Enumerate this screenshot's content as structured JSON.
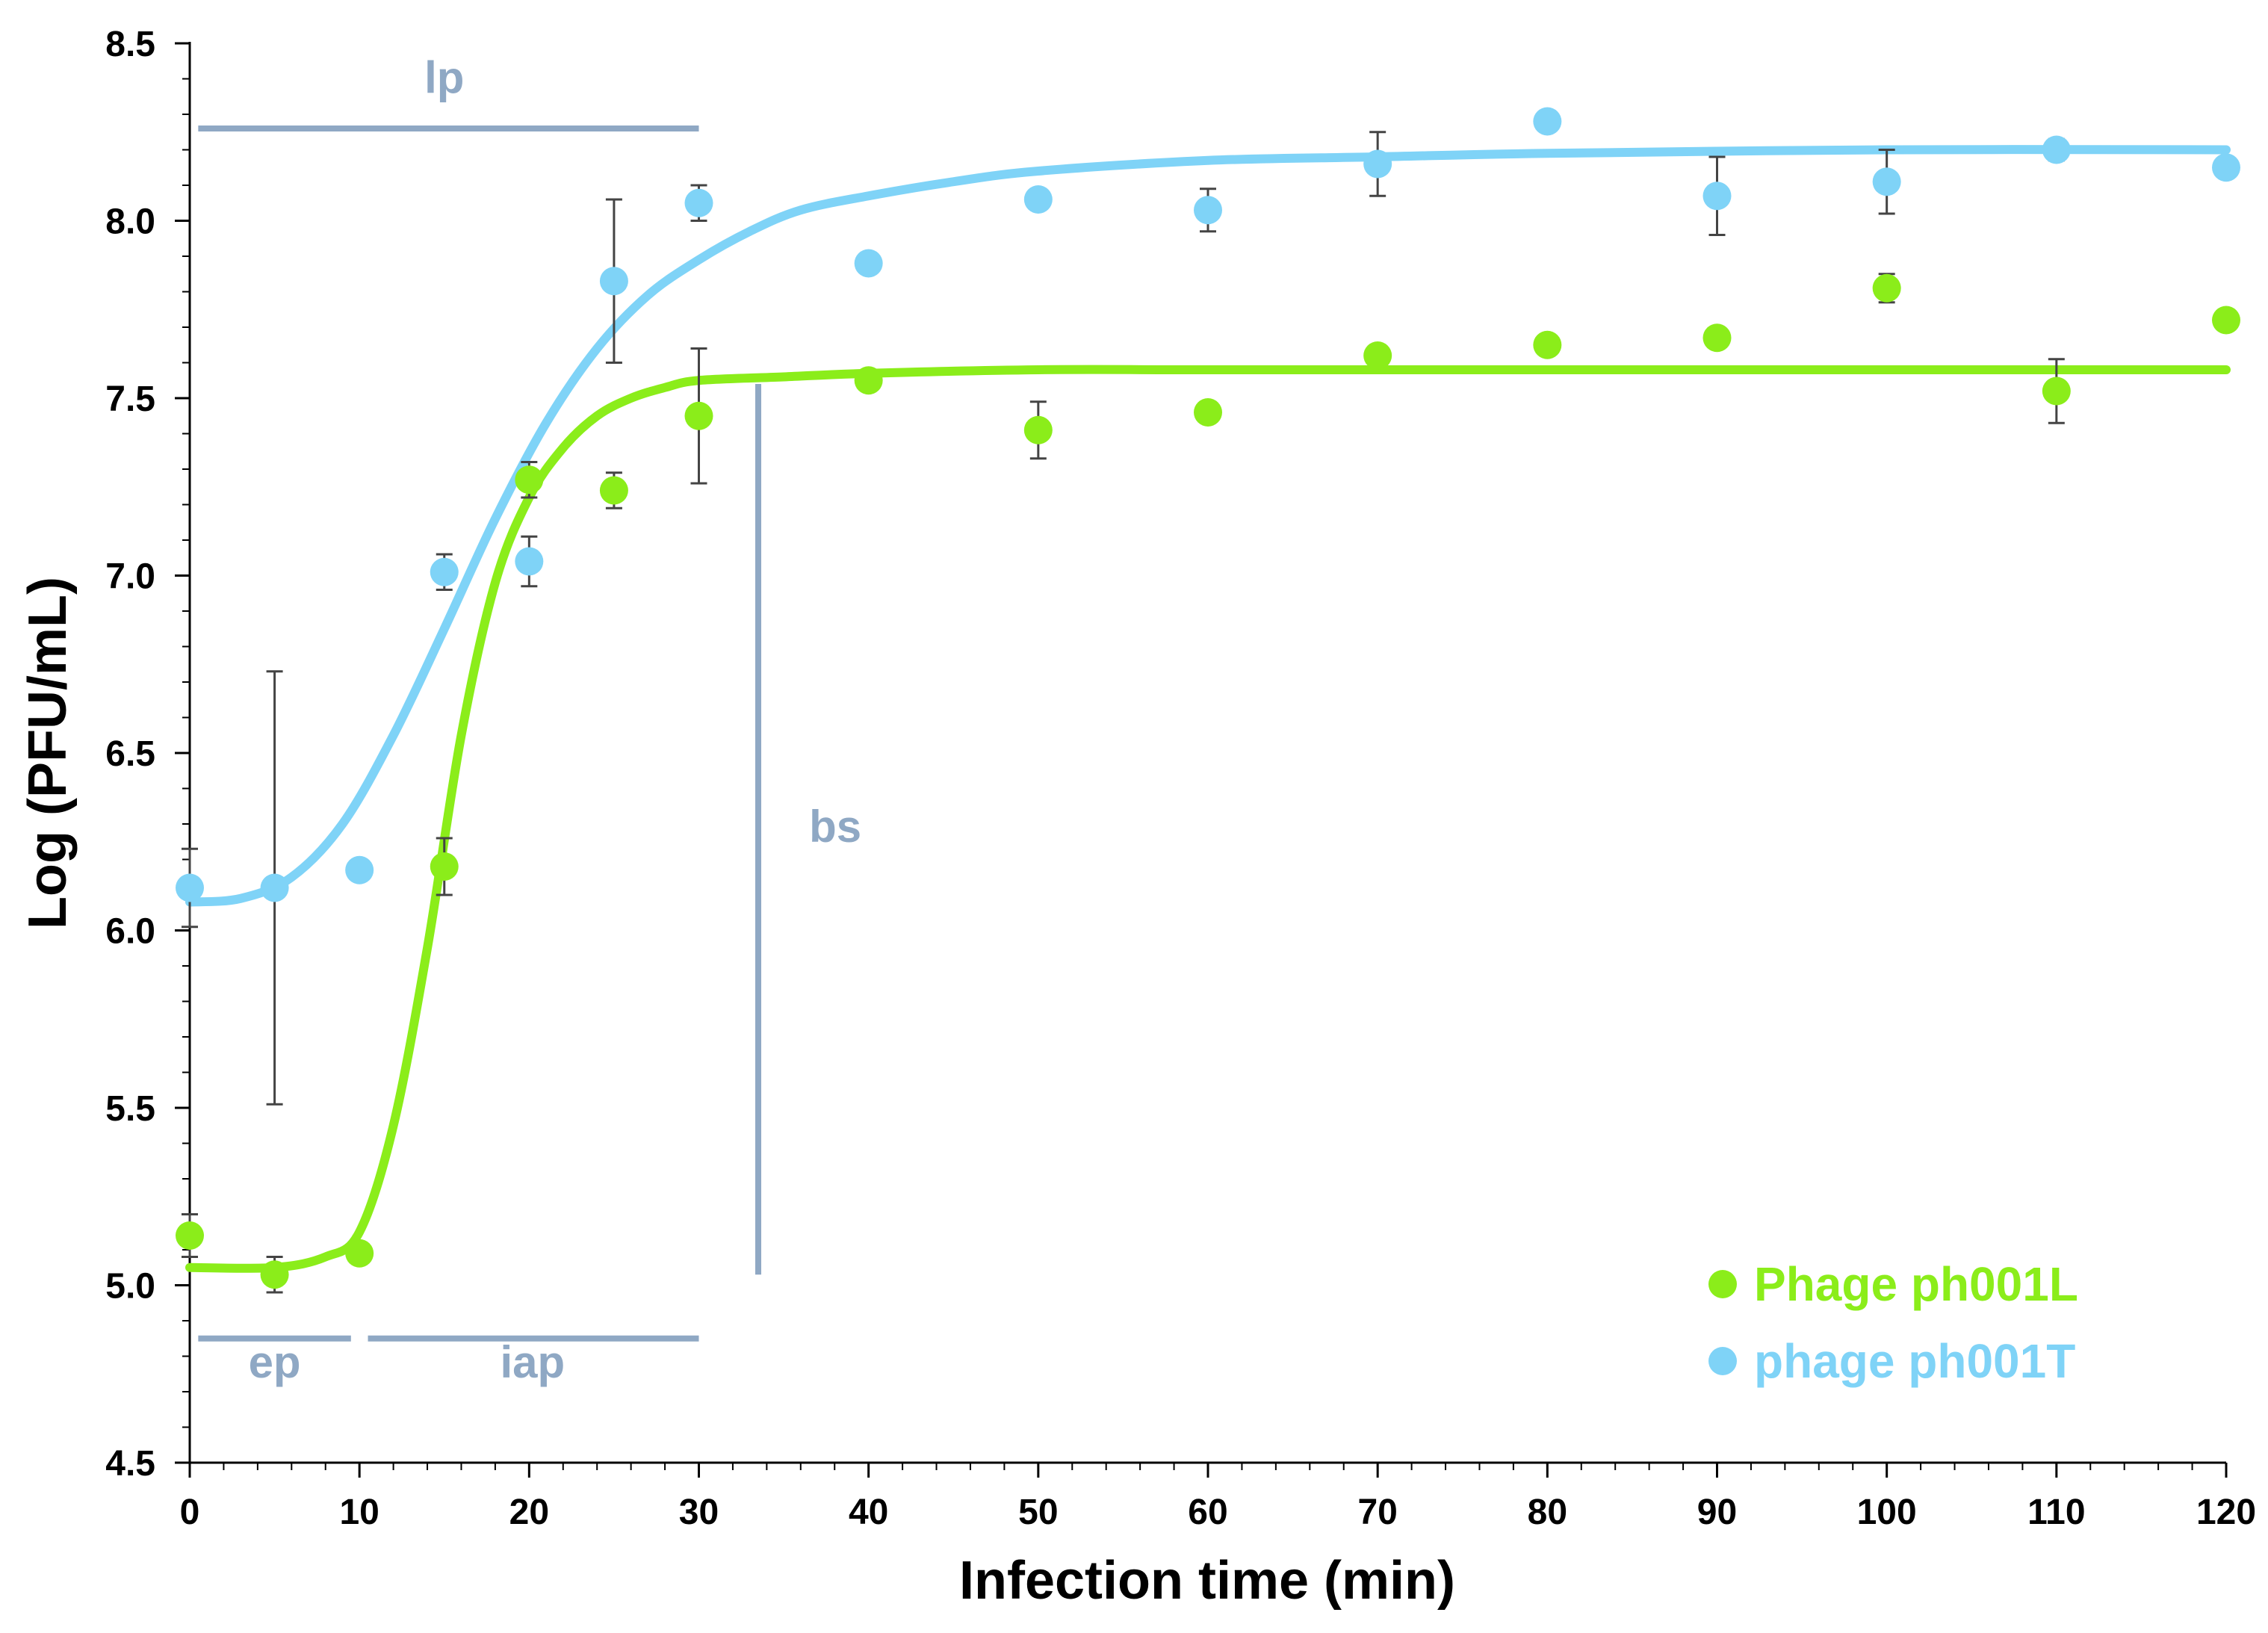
{
  "chart_data": {
    "type": "scatter",
    "title": "",
    "xlabel": "Infection time (min)",
    "ylabel": "Log (PFU/mL)",
    "xlim": [
      0,
      120
    ],
    "ylim": [
      4.5,
      8.5
    ],
    "xticks": [
      0,
      10,
      20,
      30,
      40,
      50,
      60,
      70,
      80,
      90,
      100,
      110,
      120
    ],
    "yticks": [
      4.5,
      5.0,
      5.5,
      6.0,
      6.5,
      7.0,
      7.5,
      8.0,
      8.5
    ],
    "xtick_labels": [
      "0",
      "10",
      "20",
      "30",
      "40",
      "50",
      "60",
      "70",
      "80",
      "90",
      "100",
      "110",
      "120"
    ],
    "ytick_labels": [
      "4.5",
      "5.0",
      "5.5",
      "6.0",
      "6.5",
      "7.0",
      "7.5",
      "8.0",
      "8.5"
    ],
    "grid": false,
    "legend_position": "bottom-right",
    "series": [
      {
        "name": "Phage ph001L",
        "color": "#8bed1a",
        "x": [
          0,
          5,
          10,
          15,
          20,
          25,
          30,
          40,
          50,
          60,
          70,
          80,
          90,
          100,
          110,
          120
        ],
        "y": [
          5.14,
          5.03,
          5.09,
          6.18,
          7.27,
          7.24,
          7.45,
          7.55,
          7.41,
          7.46,
          7.62,
          7.65,
          7.67,
          7.81,
          7.52,
          7.72
        ],
        "err": [
          0.06,
          0.05,
          0,
          0.08,
          0.05,
          0.05,
          0.19,
          0,
          0.08,
          0,
          0,
          0,
          0,
          0.04,
          0.09,
          0
        ],
        "fit": {
          "x": [
            0,
            5,
            8,
            10,
            12,
            14,
            16,
            18,
            20,
            22,
            24,
            26,
            28,
            30,
            35,
            40,
            50,
            60,
            80,
            100,
            120
          ],
          "y": [
            5.05,
            5.05,
            5.08,
            5.15,
            5.45,
            5.95,
            6.55,
            6.98,
            7.22,
            7.36,
            7.45,
            7.5,
            7.53,
            7.55,
            7.56,
            7.57,
            7.58,
            7.58,
            7.58,
            7.58,
            7.58
          ]
        }
      },
      {
        "name": "phage ph001T",
        "color": "#7fd3f7",
        "x": [
          0,
          5,
          10,
          15,
          20,
          25,
          30,
          40,
          50,
          60,
          70,
          80,
          90,
          100,
          110,
          120
        ],
        "y": [
          6.12,
          6.12,
          6.17,
          7.01,
          7.04,
          7.83,
          8.05,
          7.88,
          8.06,
          8.03,
          8.16,
          8.28,
          8.07,
          8.11,
          8.2,
          8.15
        ],
        "err": [
          0.11,
          0.61,
          0,
          0.05,
          0.07,
          0.23,
          0.05,
          0,
          0,
          0.06,
          0.09,
          0,
          0.11,
          0.09,
          0.03,
          0
        ],
        "fit": {
          "x": [
            0,
            3,
            6,
            9,
            12,
            15,
            18,
            21,
            24,
            27,
            30,
            33,
            36,
            40,
            45,
            50,
            60,
            70,
            80,
            100,
            120
          ],
          "y": [
            6.08,
            6.09,
            6.15,
            6.3,
            6.55,
            6.85,
            7.16,
            7.43,
            7.64,
            7.79,
            7.89,
            7.97,
            8.03,
            8.07,
            8.11,
            8.14,
            8.17,
            8.18,
            8.19,
            8.2,
            8.2
          ]
        }
      }
    ],
    "annotations": [
      {
        "label": "lp",
        "kind": "hbar",
        "x": [
          0.5,
          30
        ],
        "y": 8.26,
        "label_x": 15,
        "label_y": 8.36
      },
      {
        "label": "ep",
        "kind": "hbar",
        "x": [
          0.5,
          9.5
        ],
        "y": 4.85,
        "label_x": 5,
        "label_y": 4.74
      },
      {
        "label": "iap",
        "kind": "hbar",
        "x": [
          10.5,
          30
        ],
        "y": 4.85,
        "label_x": 20.2,
        "label_y": 4.74
      },
      {
        "label": "bs",
        "kind": "vbar",
        "x": 33.5,
        "y": [
          5.03,
          7.54
        ],
        "label_x": 36.5,
        "label_y": 6.25
      }
    ],
    "annotation_color": "#8fa8c4"
  }
}
